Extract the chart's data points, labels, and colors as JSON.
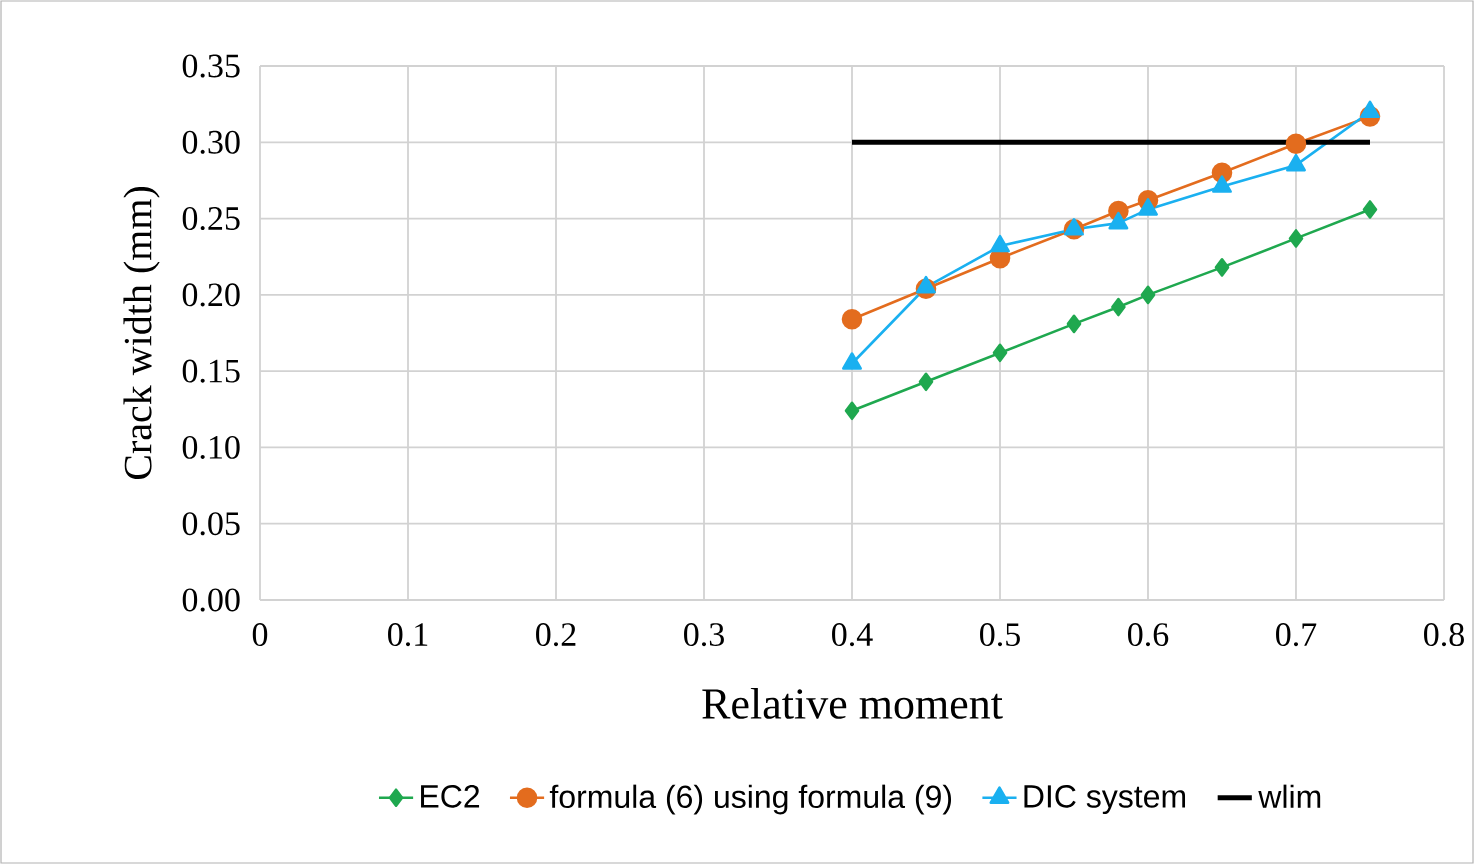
{
  "chart_data": {
    "type": "line",
    "xlabel": "Relative moment",
    "ylabel": "Crack width (mm)",
    "x": [
      0.4,
      0.45,
      0.5,
      0.55,
      0.58,
      0.6,
      0.65,
      0.7,
      0.75
    ],
    "series": [
      {
        "name": "EC2",
        "color": "#1fa84f",
        "marker": "diamond",
        "values": [
          0.124,
          0.143,
          0.162,
          0.181,
          0.192,
          0.2,
          0.218,
          0.237,
          0.256
        ]
      },
      {
        "name": "formula (6) using formula (9)",
        "color": "#e36c1e",
        "marker": "circle",
        "values": [
          0.184,
          0.204,
          0.224,
          0.243,
          0.255,
          0.262,
          0.28,
          0.299,
          0.317
        ]
      },
      {
        "name": "DIC system",
        "color": "#1ab0f0",
        "marker": "triangle",
        "values": [
          0.155,
          0.205,
          0.232,
          0.243,
          0.247,
          0.256,
          0.271,
          0.285,
          0.32
        ]
      },
      {
        "name": "wlim",
        "color": "#000000",
        "marker": "none",
        "x": [
          0.4,
          0.75
        ],
        "values": [
          0.3,
          0.3
        ]
      }
    ],
    "xlim": [
      0,
      0.8
    ],
    "xticks": [
      0,
      {
        "value": 0.1,
        "label": "0.1"
      },
      {
        "value": 0.2,
        "label": "0.2"
      },
      {
        "value": 0.3,
        "label": "0.3"
      },
      {
        "value": 0.4,
        "label": "0.4"
      },
      {
        "value": 0.5,
        "label": "0.5"
      },
      {
        "value": 0.6,
        "label": "0.6"
      },
      {
        "value": 0.7,
        "label": "0.7"
      },
      {
        "value": 0.8,
        "label": "0.8"
      }
    ],
    "ylim": [
      0,
      0.35
    ],
    "yticks": [
      {
        "value": 0,
        "label": "0.00"
      },
      {
        "value": 0.05,
        "label": "0.05"
      },
      {
        "value": 0.1,
        "label": "0.10"
      },
      {
        "value": 0.15,
        "label": "0.15"
      },
      {
        "value": 0.2,
        "label": "0.20"
      },
      {
        "value": 0.25,
        "label": "0.25"
      },
      {
        "value": 0.3,
        "label": "0.30"
      },
      {
        "value": 0.35,
        "label": "0.35"
      }
    ],
    "grid": true,
    "legend": "bottom",
    "line_style": "solid"
  }
}
